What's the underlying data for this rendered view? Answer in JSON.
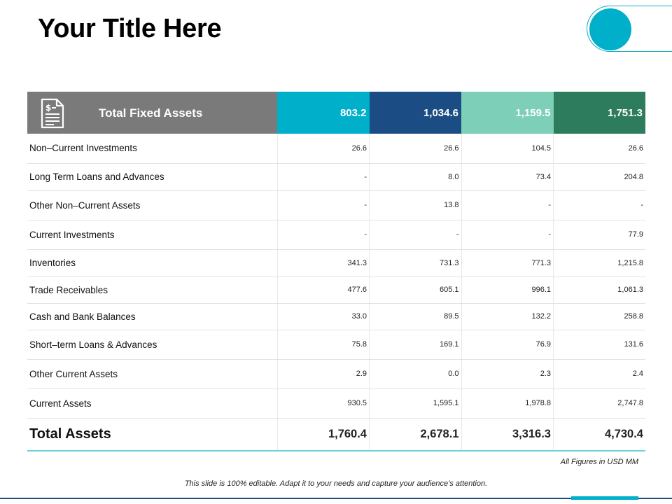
{
  "title": "Your Title Here",
  "table": {
    "header": {
      "label": "Total Fixed Assets",
      "values": [
        "803.2",
        "1,034.6",
        "1,159.5",
        "1,751.3"
      ]
    },
    "rows": [
      {
        "label": "Non–Current  Investments",
        "values": [
          "26.6",
          "26.6",
          "104.5",
          "26.6"
        ]
      },
      {
        "label": "Long Term Loans and Advances",
        "values": [
          "-",
          "8.0",
          "73.4",
          "204.8"
        ]
      },
      {
        "label": "Other Non–Current  Assets",
        "values": [
          "-",
          "13.8",
          "-",
          "-"
        ]
      },
      {
        "label": "Current Investments",
        "values": [
          "-",
          "-",
          "-",
          "77.9"
        ]
      },
      {
        "label": "Inventories",
        "values": [
          "341.3",
          "731.3",
          "771.3",
          "1,215.8"
        ]
      },
      {
        "label": "Trade Receivables",
        "values": [
          "477.6",
          "605.1",
          "996.1",
          "1,061.3"
        ]
      },
      {
        "label": "Cash and Bank Balances",
        "values": [
          "33.0",
          "89.5",
          "132.2",
          "258.8"
        ]
      },
      {
        "label": "Short–term  Loans & Advances",
        "values": [
          "75.8",
          "169.1",
          "76.9",
          "131.6"
        ]
      },
      {
        "label": "Other Current Assets",
        "values": [
          "2.9",
          "0.0",
          "2.3",
          "2.4"
        ]
      },
      {
        "label": "Current Assets",
        "values": [
          "930.5",
          "1,595.1",
          "1,978.8",
          "2,747.8"
        ]
      }
    ],
    "total": {
      "label": "Total Assets",
      "values": [
        "1,760.4",
        "2,678.1",
        "3,316.3",
        "4,730.4"
      ]
    }
  },
  "note": "All Figures in USD MM",
  "footer": "This slide is 100% editable. Adapt it to your needs and capture your audience’s attention.",
  "icons": {
    "header_icon": "document-dollar-icon"
  },
  "colors": {
    "cyan": "#00afca",
    "navy": "#1b4d84",
    "mint": "#7ecfb7",
    "green": "#2e7c5e",
    "gray": "#7a7a7a"
  }
}
